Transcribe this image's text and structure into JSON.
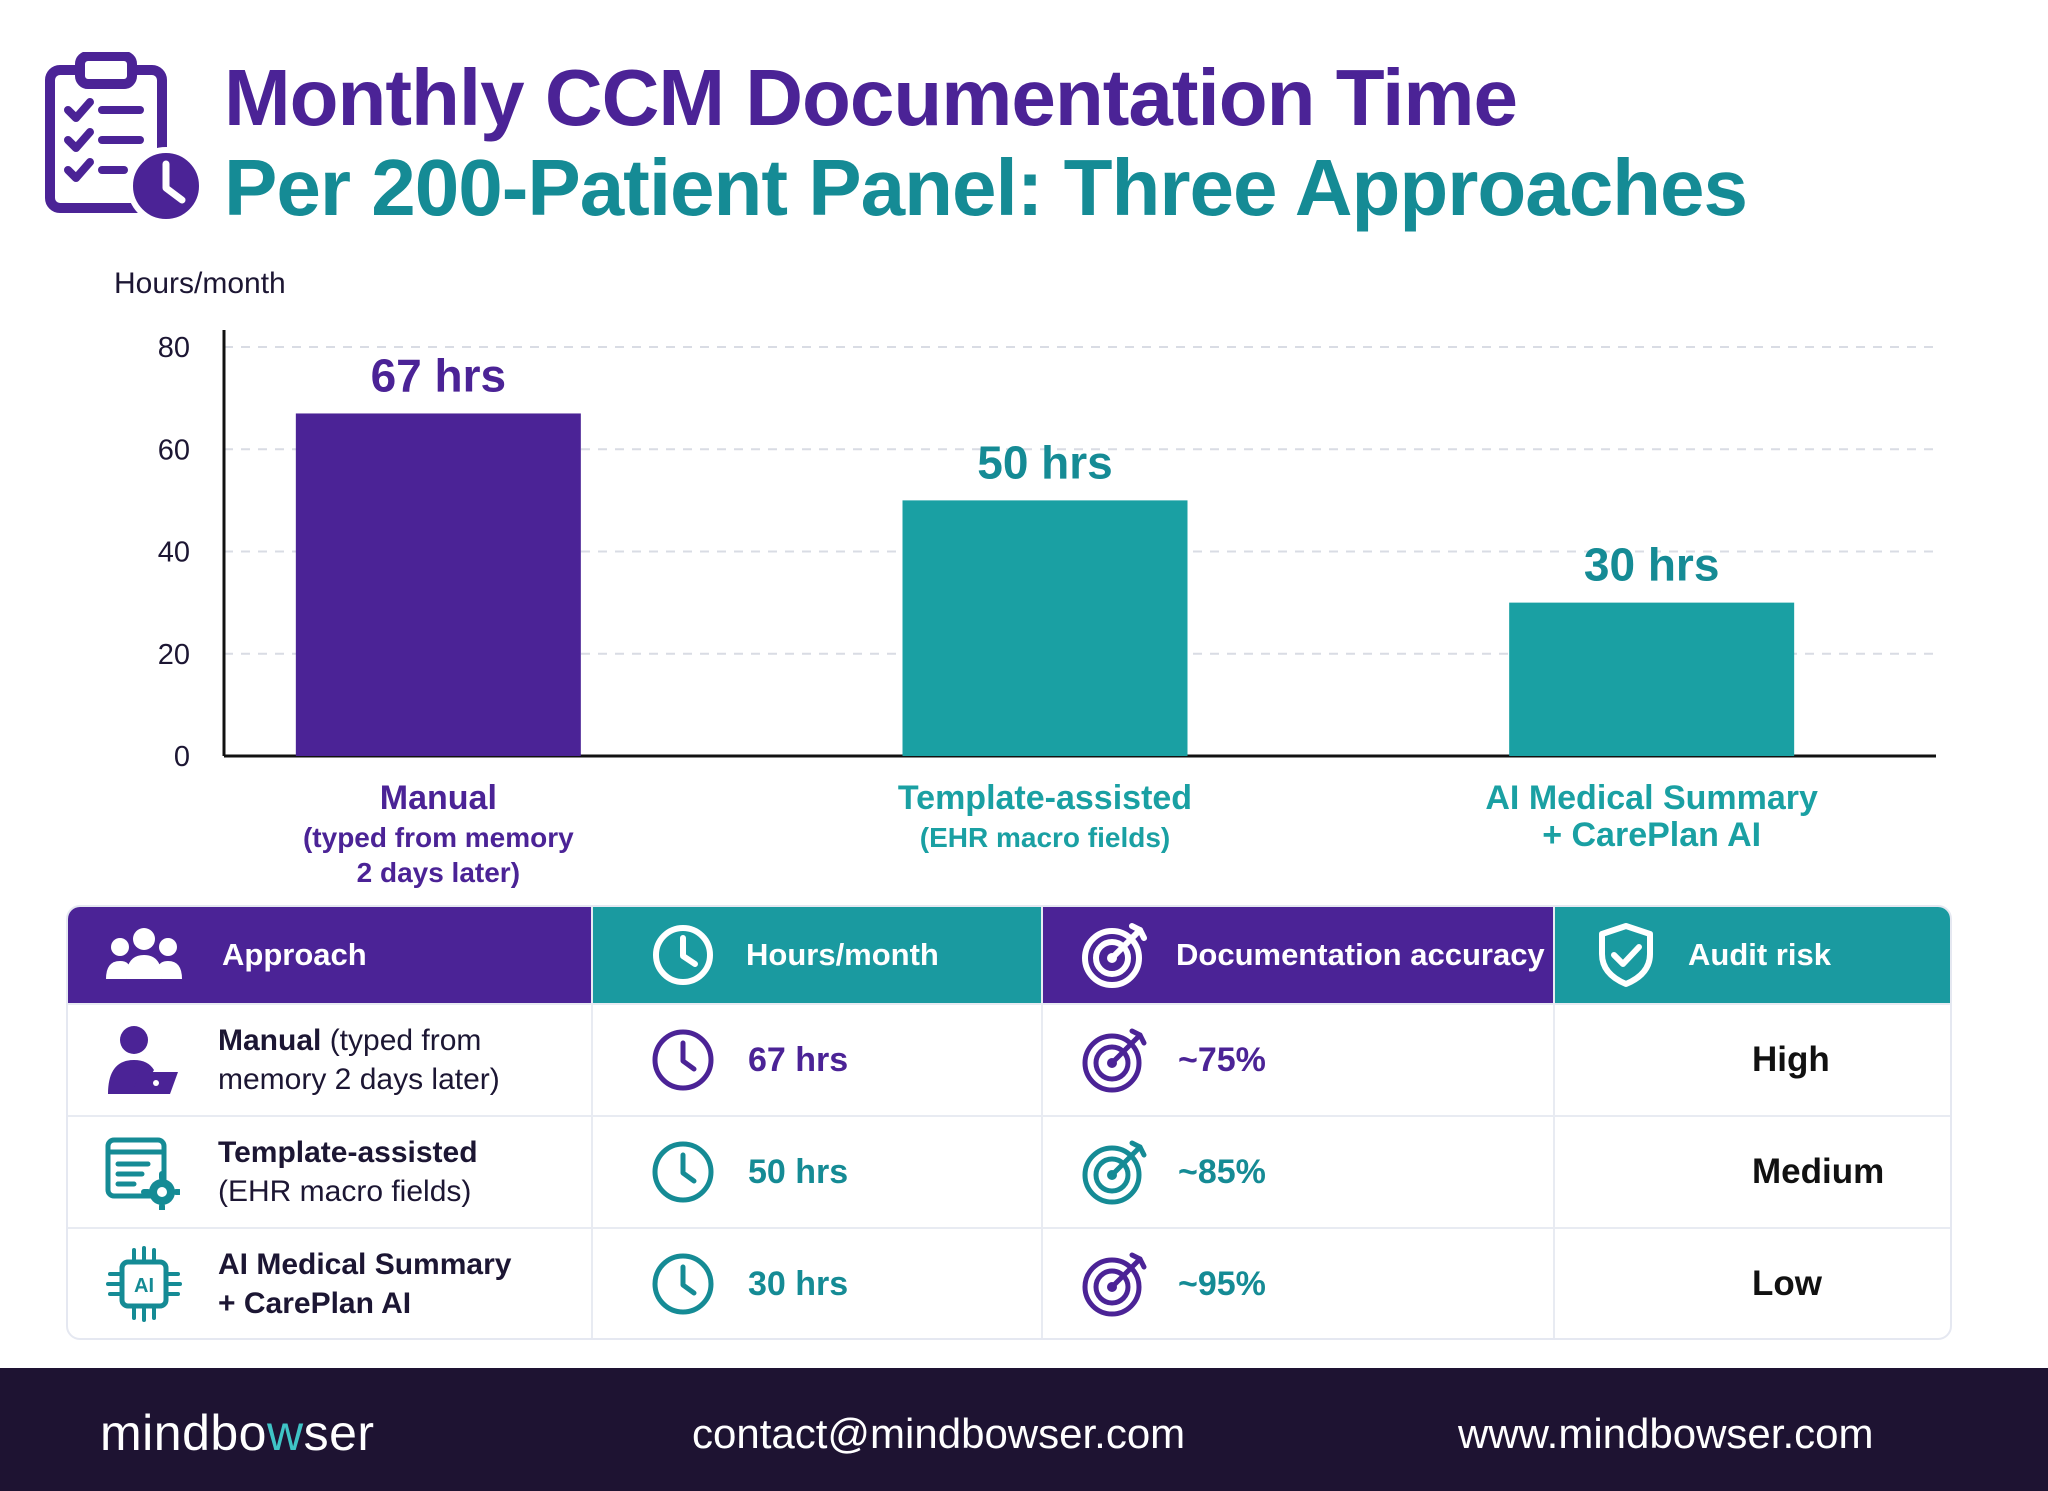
{
  "header": {
    "title_line_1": "Monthly CCM Documentation Time",
    "title_line_2": "Per 200-Patient Panel: Three Approaches",
    "icon": "clipboard-clock-icon"
  },
  "chart_data": {
    "type": "bar",
    "ylabel": "Hours/month",
    "ylim": [
      0,
      80
    ],
    "yticks": [
      0,
      20,
      40,
      60,
      80
    ],
    "grid": true,
    "categories": [
      "Manual",
      "Template-assisted",
      "AI Medical Summary"
    ],
    "category_sublabels": [
      "(typed from memory\n2 days later)",
      "(EHR macro fields)",
      "+ CarePlan AI"
    ],
    "values": [
      67,
      50,
      30
    ],
    "data_labels": [
      "67 hrs",
      "50 hrs",
      "30 hrs"
    ],
    "colors": [
      "#4b2396",
      "#1aa0a3",
      "#1aa0a3"
    ],
    "label_colors": [
      "#4b2396",
      "#158b95",
      "#158b95"
    ]
  },
  "table": {
    "headers": [
      {
        "label": "Approach",
        "icon": "users-icon"
      },
      {
        "label": "Hours/month",
        "icon": "clock-icon"
      },
      {
        "label": "Documentation accuracy",
        "icon": "target-icon"
      },
      {
        "label": "Audit risk",
        "icon": "shield-check-icon"
      }
    ],
    "rows": [
      {
        "approach_bold": "Manual",
        "approach_rest": " (typed from",
        "approach_line2": "memory 2 days later)",
        "approach_icon": "person-laptop-icon",
        "hours": "67 hrs",
        "accuracy": "~75%",
        "risk": "High",
        "accent": "#4b2396"
      },
      {
        "approach_bold": "Template-assisted",
        "approach_rest": "",
        "approach_line2": "(EHR macro fields)",
        "approach_icon": "template-gear-icon",
        "hours": "50 hrs",
        "accuracy": "~85%",
        "risk": "Medium",
        "accent": "#158b95"
      },
      {
        "approach_bold": "AI Medical Summary",
        "approach_rest": "",
        "approach_line2": "+ CarePlan AI",
        "approach_icon": "ai-chip-icon",
        "hours": "30 hrs",
        "accuracy": "~95%",
        "risk": "Low",
        "accent": "#158b95"
      }
    ],
    "colors": {
      "header_purple": "#4b2396",
      "header_teal": "#1a9aa0"
    }
  },
  "footer": {
    "logo_pre": "mindbo",
    "logo_w": "w",
    "logo_post": "ser",
    "email": "contact@mindbowser.com",
    "website": "www.mindbowser.com"
  }
}
